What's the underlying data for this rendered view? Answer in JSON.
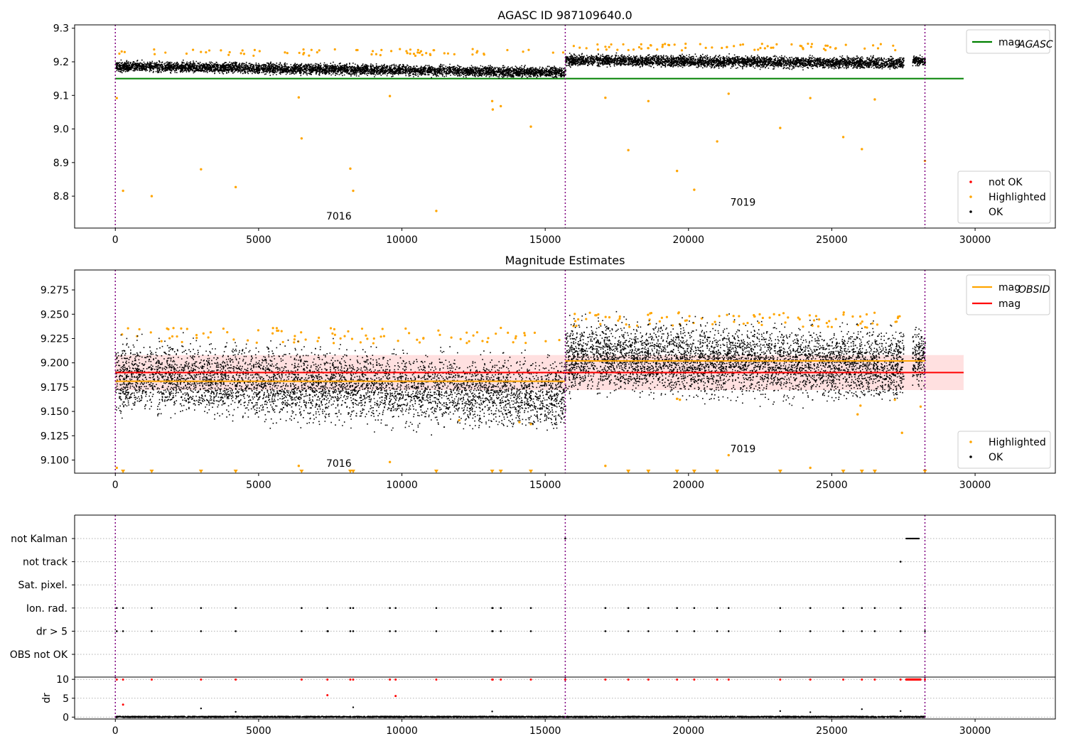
{
  "colors": {
    "ok": "#000000",
    "highlighted": "#ffa500",
    "not_ok": "#ff0000",
    "mag_agasc": "#008000",
    "mag_obsid": "#ffa500",
    "mag": "#ff0000",
    "mag_band": "#ffcccc",
    "obsid_vline": "#800080",
    "grid": "#b0b0b0"
  },
  "chart_data": [
    {
      "type": "scatter",
      "title": "AGASC ID 987109640.0",
      "xlabel": "",
      "ylabel": "",
      "xlim": [
        -1420,
        32800
      ],
      "ylim": [
        8.705,
        9.31
      ],
      "xticks": [
        0,
        5000,
        10000,
        15000,
        20000,
        25000,
        30000
      ],
      "yticks": [
        8.8,
        8.9,
        9.0,
        9.1,
        9.2,
        9.3
      ],
      "ytick_labels": [
        "8.8",
        "8.9",
        "9.0",
        "9.1",
        "9.2",
        "9.3"
      ],
      "legend_lines": [
        {
          "label": "mag",
          "sub": "AGASC",
          "color": "#008000"
        }
      ],
      "legend_lines_position": "upper-right",
      "legend_points": [
        {
          "label": "not OK",
          "color": "#ff0000"
        },
        {
          "label": "Highlighted",
          "color": "#ffa500"
        },
        {
          "label": "OK",
          "color": "#000000"
        }
      ],
      "legend_points_position": "lower-right",
      "hlines": [
        {
          "y": 9.15,
          "x0": 0,
          "x1": 29600,
          "color": "#008000"
        }
      ],
      "obsid_boundaries": [
        0,
        15700,
        28250
      ],
      "obsid_labels": [
        {
          "text": "7016",
          "x": 7800,
          "y": 8.73
        },
        {
          "text": "7019",
          "x": 21900,
          "y": 8.772
        }
      ],
      "ok_segments": [
        {
          "x0": 0,
          "x1": 15700,
          "y0": 9.188,
          "y1": 9.17,
          "spread": 0.022
        },
        {
          "x0": 15700,
          "x1": 27500,
          "y0": 9.206,
          "y1": 9.198,
          "spread": 0.024
        },
        {
          "x0": 27800,
          "x1": 28250,
          "y0": 9.205,
          "y1": 9.205,
          "spread": 0.02
        }
      ],
      "highlighted_points": [
        [
          50,
          9.092
        ],
        [
          270,
          8.816
        ],
        [
          1270,
          8.8
        ],
        [
          2990,
          8.88
        ],
        [
          4200,
          8.827
        ],
        [
          6400,
          9.094
        ],
        [
          6500,
          8.972
        ],
        [
          8200,
          8.882
        ],
        [
          8300,
          8.816
        ],
        [
          9580,
          9.098
        ],
        [
          11200,
          8.756
        ],
        [
          13150,
          9.083
        ],
        [
          13170,
          9.058
        ],
        [
          13450,
          9.068
        ],
        [
          14500,
          9.007
        ],
        [
          17100,
          9.093
        ],
        [
          17900,
          8.937
        ],
        [
          18600,
          9.083
        ],
        [
          19600,
          8.875
        ],
        [
          20200,
          8.819
        ],
        [
          21000,
          8.963
        ],
        [
          21400,
          9.105
        ],
        [
          23200,
          9.003
        ],
        [
          24250,
          9.092
        ],
        [
          25400,
          8.976
        ],
        [
          26050,
          8.94
        ],
        [
          26500,
          9.088
        ],
        [
          28250,
          8.905
        ]
      ],
      "highlighted_band": [
        {
          "x0": 0,
          "x1": 15700,
          "y": 9.228
        },
        {
          "x0": 15700,
          "x1": 27500,
          "y": 9.244
        }
      ]
    },
    {
      "type": "scatter",
      "title": "Magnitude Estimates",
      "xlabel": "",
      "ylabel": "",
      "xlim": [
        -1420,
        32800
      ],
      "ylim": [
        9.0865,
        9.2955
      ],
      "xticks": [
        0,
        5000,
        10000,
        15000,
        20000,
        25000,
        30000
      ],
      "yticks": [
        9.1,
        9.125,
        9.15,
        9.175,
        9.2,
        9.225,
        9.25,
        9.275
      ],
      "ytick_labels": [
        "9.100",
        "9.125",
        "9.150",
        "9.175",
        "9.200",
        "9.225",
        "9.250",
        "9.275"
      ],
      "legend_lines": [
        {
          "label": "mag",
          "sub": "OBSID",
          "color": "#ffa500"
        },
        {
          "label": "mag",
          "sub": "",
          "color": "#ff0000"
        }
      ],
      "legend_lines_position": "upper-right",
      "legend_points": [
        {
          "label": "Highlighted",
          "color": "#ffa500"
        },
        {
          "label": "OK",
          "color": "#000000"
        }
      ],
      "legend_points_position": "lower-right",
      "band": {
        "y0": 9.172,
        "y1": 9.208,
        "x0": 0,
        "x1": 29600,
        "color": "#ffcccc"
      },
      "hlines": [
        {
          "y": 9.19,
          "x0": 0,
          "x1": 29600,
          "color": "#ff0000"
        },
        {
          "y": 9.181,
          "x0": 0,
          "x1": 15700,
          "color": "#ffa500"
        },
        {
          "y": 9.202,
          "x0": 15700,
          "x1": 28250,
          "color": "#ffa500"
        }
      ],
      "obsid_boundaries": [
        0,
        15700,
        28250
      ],
      "obsid_labels": [
        {
          "text": "7016",
          "x": 7800,
          "y": 9.093
        },
        {
          "text": "7019",
          "x": 21900,
          "y": 9.108
        }
      ],
      "ok_segments": [
        {
          "x0": 0,
          "x1": 15700,
          "y0": 9.186,
          "y1": 9.168,
          "spread": 0.05
        },
        {
          "x0": 15700,
          "x1": 27500,
          "y0": 9.206,
          "y1": 9.199,
          "spread": 0.05
        },
        {
          "x0": 27800,
          "x1": 28250,
          "y0": 9.205,
          "y1": 9.205,
          "spread": 0.04
        }
      ],
      "highlighted_points": [
        [
          50,
          9.092
        ],
        [
          6400,
          9.094
        ],
        [
          9580,
          9.098
        ],
        [
          12000,
          9.141
        ],
        [
          14100,
          9.139
        ],
        [
          14500,
          9.137
        ],
        [
          17100,
          9.094
        ],
        [
          19600,
          9.163
        ],
        [
          19700,
          9.162
        ],
        [
          21400,
          9.105
        ],
        [
          24250,
          9.092
        ],
        [
          25900,
          9.147
        ],
        [
          26000,
          9.156
        ],
        [
          27200,
          9.162
        ],
        [
          27450,
          9.128
        ],
        [
          28100,
          9.155
        ]
      ],
      "highlighted_band": [
        {
          "x0": 0,
          "x1": 15700,
          "y": 9.228
        },
        {
          "x0": 15700,
          "x1": 27500,
          "y": 9.244
        }
      ],
      "out_of_range_markers_y": 9.088,
      "out_of_range_markers_x": [
        270,
        1270,
        2990,
        4200,
        6500,
        8200,
        8300,
        11200,
        13150,
        13450,
        14500,
        17900,
        18600,
        19600,
        20200,
        21000,
        23200,
        25400,
        26050,
        26500,
        28250
      ]
    },
    {
      "type": "scatter",
      "title": "",
      "xlabel": "",
      "ylabel": "",
      "xlim": [
        -1420,
        32800
      ],
      "categories": [
        "not Kalman",
        "not track",
        "Sat. pixel.",
        "Ion. rad.",
        "dr > 5",
        "OBS not OK"
      ],
      "obsid_boundaries": [
        0,
        15700,
        28250
      ],
      "flags": {
        "not Kalman": {
          "ranges": [
            [
              27600,
              28050
            ]
          ],
          "points": [
            15700
          ]
        },
        "not track": {
          "ranges": [],
          "points": [
            27400
          ]
        },
        "Sat. pixel.": {
          "ranges": [],
          "points": []
        },
        "Ion. rad.": {
          "ranges": [],
          "points": [
            50,
            270,
            1270,
            2990,
            4200,
            6500,
            7400,
            8200,
            8300,
            9580,
            9780,
            11200,
            13150,
            13170,
            13450,
            14500,
            17100,
            17900,
            18600,
            19600,
            20200,
            21000,
            21400,
            23200,
            24250,
            25400,
            26050,
            26500,
            27400,
            28250
          ]
        },
        "dr > 5": {
          "ranges": [],
          "points": [
            50,
            270,
            1270,
            2990,
            4200,
            6500,
            7400,
            7420,
            8200,
            8300,
            9580,
            9780,
            11200,
            13150,
            13170,
            13450,
            14500,
            17100,
            17900,
            18600,
            19600,
            20200,
            21000,
            21400,
            23200,
            24250,
            25400,
            26050,
            26500,
            27400,
            28250
          ]
        },
        "OBS not OK": {
          "ranges": [],
          "points": []
        }
      }
    },
    {
      "type": "scatter",
      "title": "",
      "xlabel": "",
      "ylabel": "dr",
      "xlim": [
        -1420,
        32800
      ],
      "ylim": [
        -0.5,
        10.6
      ],
      "xticks": [
        0,
        5000,
        10000,
        15000,
        20000,
        25000,
        30000
      ],
      "yticks": [
        0,
        5,
        10
      ],
      "ytick_labels": [
        "0",
        "5",
        "10"
      ],
      "obsid_boundaries": [
        0,
        15700,
        28250
      ],
      "ok_segment": {
        "x0": 0,
        "x1": 28250,
        "y": 0.2,
        "spread": 0.35
      },
      "black_points": [
        [
          2990,
          2.3
        ],
        [
          4200,
          1.4
        ],
        [
          8300,
          2.6
        ],
        [
          13150,
          1.5
        ],
        [
          23200,
          1.6
        ],
        [
          24250,
          1.3
        ],
        [
          26050,
          2.1
        ],
        [
          27400,
          1.6
        ]
      ],
      "red_points": [
        [
          50,
          9.95
        ],
        [
          270,
          9.95
        ],
        [
          270,
          3.3
        ],
        [
          1270,
          9.95
        ],
        [
          2990,
          9.95
        ],
        [
          4200,
          9.95
        ],
        [
          6500,
          9.95
        ],
        [
          7400,
          9.95
        ],
        [
          7400,
          5.8
        ],
        [
          8200,
          9.95
        ],
        [
          8300,
          9.95
        ],
        [
          9580,
          9.95
        ],
        [
          9780,
          9.95
        ],
        [
          9780,
          5.6
        ],
        [
          11200,
          9.95
        ],
        [
          13150,
          9.95
        ],
        [
          13170,
          9.95
        ],
        [
          13450,
          9.95
        ],
        [
          14500,
          9.95
        ],
        [
          15700,
          9.95
        ],
        [
          17100,
          9.95
        ],
        [
          17900,
          9.95
        ],
        [
          18600,
          9.95
        ],
        [
          19600,
          9.95
        ],
        [
          20200,
          9.95
        ],
        [
          21000,
          9.95
        ],
        [
          21400,
          9.95
        ],
        [
          23200,
          9.95
        ],
        [
          24250,
          9.95
        ],
        [
          25400,
          9.95
        ],
        [
          26050,
          9.95
        ],
        [
          26500,
          9.95
        ],
        [
          27400,
          9.95
        ],
        [
          28250,
          9.95
        ]
      ],
      "red_range": {
        "x0": 27600,
        "x1": 28100,
        "y": 9.95
      }
    }
  ]
}
